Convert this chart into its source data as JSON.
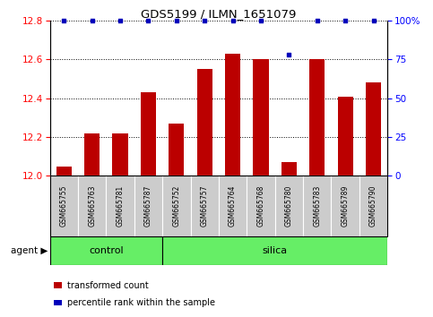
{
  "title": "GDS5199 / ILMN_1651079",
  "samples": [
    "GSM665755",
    "GSM665763",
    "GSM665781",
    "GSM665787",
    "GSM665752",
    "GSM665757",
    "GSM665764",
    "GSM665768",
    "GSM665780",
    "GSM665783",
    "GSM665789",
    "GSM665790"
  ],
  "bar_values": [
    12.05,
    12.22,
    12.22,
    12.43,
    12.27,
    12.55,
    12.63,
    12.6,
    12.07,
    12.6,
    12.41,
    12.48
  ],
  "percentile_values": [
    100,
    100,
    100,
    100,
    100,
    100,
    100,
    100,
    78,
    100,
    100,
    100
  ],
  "bar_color": "#bb0000",
  "dot_color": "#0000bb",
  "ylim_left": [
    12.0,
    12.8
  ],
  "ylim_right": [
    0,
    100
  ],
  "yticks_left": [
    12.0,
    12.2,
    12.4,
    12.6,
    12.8
  ],
  "yticks_right": [
    0,
    25,
    50,
    75,
    100
  ],
  "ytick_labels_right": [
    "0",
    "25",
    "50",
    "75",
    "100%"
  ],
  "n_control": 4,
  "n_silica": 8,
  "green_color": "#66ee66",
  "agent_label": "agent",
  "control_label": "control",
  "silica_label": "silica",
  "legend_bar_label": "transformed count",
  "legend_dot_label": "percentile rank within the sample",
  "bar_width": 0.55,
  "label_bg": "#cccccc"
}
